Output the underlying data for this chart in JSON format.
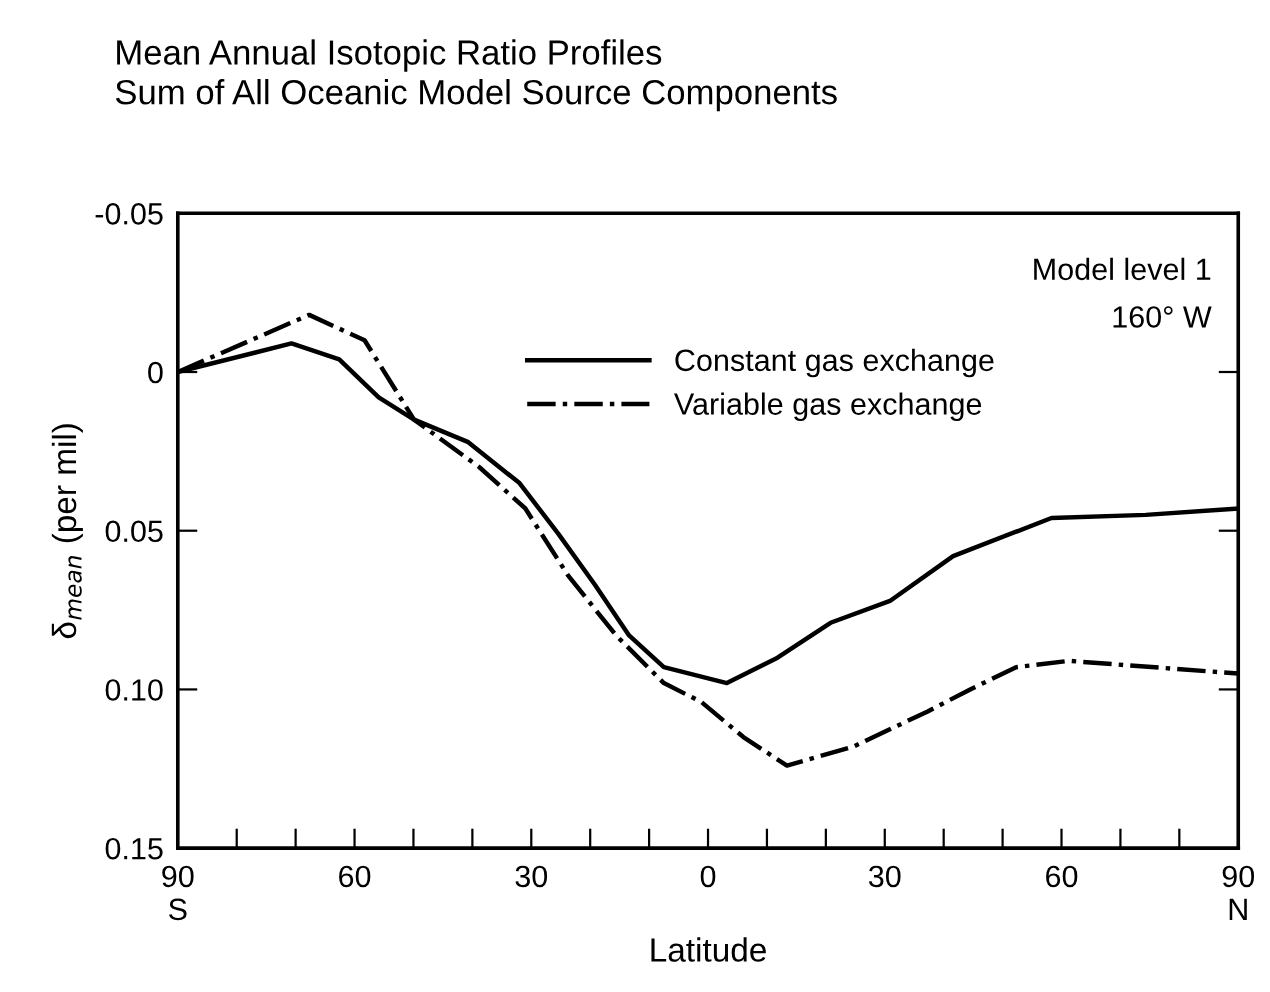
{
  "chart_data": {
    "type": "line",
    "title": "Mean Annual Isotopic Ratio Profiles",
    "subtitle": "Sum of All Oceanic Model Source Components",
    "xlabel": "Latitude",
    "ylabel": "δ$_{mean}$ (per mil)",
    "annotations": [
      "Model level 1",
      "160° W"
    ],
    "series": [
      {
        "name": "Constant gas exchange",
        "color": "#000000",
        "line_style": "solid",
        "x": [
          -90,
          -70.7,
          -62.6,
          -55.9,
          -49.9,
          -40.8,
          -32,
          -25.4,
          -19.2,
          -13.4,
          -7.5,
          3.2,
          11.8,
          20.8,
          31,
          41.6,
          58.3,
          74.3,
          90
        ],
        "values": [
          0.0,
          -0.009,
          -0.004,
          0.008,
          0.015,
          0.022,
          0.035,
          0.051,
          0.067,
          0.083,
          0.093,
          0.098,
          0.09,
          0.079,
          0.072,
          0.058,
          0.046,
          0.045,
          0.043
        ]
      },
      {
        "name": "Variable gas exchange",
        "color": "#000000",
        "line_style": "dashdot",
        "x": [
          -90,
          -67.7,
          -58.3,
          -49.9,
          -38.8,
          -31,
          -23.8,
          -15.6,
          -7.5,
          -1.1,
          6,
          13.4,
          24.7,
          37.2,
          44.5,
          52.3,
          61.3,
          90
        ],
        "values": [
          0.0,
          -0.018,
          -0.01,
          0.015,
          0.03,
          0.043,
          0.064,
          0.083,
          0.098,
          0.104,
          0.115,
          0.124,
          0.118,
          0.107,
          0.1,
          0.093,
          0.091,
          0.095
        ]
      }
    ],
    "xlim": [
      -90,
      90
    ],
    "ylim": [
      0.15,
      -0.05
    ],
    "xticks": [
      {
        "value": -90,
        "label": "90\nS"
      },
      {
        "value": -80,
        "label": null
      },
      {
        "value": -70,
        "label": null
      },
      {
        "value": -60,
        "label": "60"
      },
      {
        "value": -50,
        "label": null
      },
      {
        "value": -40,
        "label": null
      },
      {
        "value": -30,
        "label": "30"
      },
      {
        "value": -20,
        "label": null
      },
      {
        "value": -10,
        "label": null
      },
      {
        "value": 0,
        "label": "0"
      },
      {
        "value": 10,
        "label": null
      },
      {
        "value": 20,
        "label": null
      },
      {
        "value": 30,
        "label": "30"
      },
      {
        "value": 40,
        "label": null
      },
      {
        "value": 50,
        "label": null
      },
      {
        "value": 60,
        "label": "60"
      },
      {
        "value": 70,
        "label": null
      },
      {
        "value": 80,
        "label": null
      },
      {
        "value": 90,
        "label": "90\nN"
      }
    ],
    "yticks": [
      {
        "value": -0.05,
        "label": "-0.05"
      },
      {
        "value": 0,
        "label": "0"
      },
      {
        "value": 0.05,
        "label": "0.05"
      },
      {
        "value": 0.1,
        "label": "0.10"
      },
      {
        "value": 0.15,
        "label": "0.15"
      }
    ],
    "grid": false,
    "legend": "top",
    "marker": "none"
  }
}
